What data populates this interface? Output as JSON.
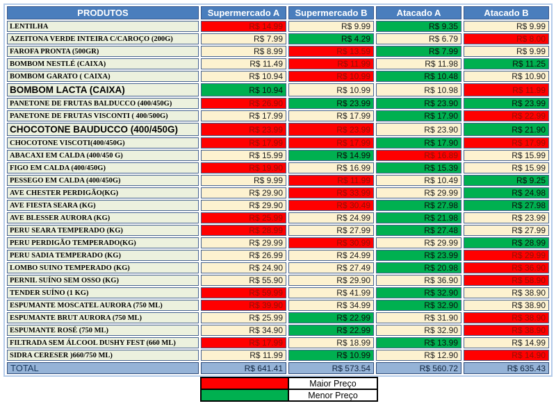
{
  "chart_data": {
    "type": "table",
    "title": "Comparação de preços de produtos entre mercados",
    "columns": [
      "PRODUTOS",
      "Supermercado A",
      "Supermercado B",
      "Atacado A",
      "Atacado B"
    ],
    "rows": [
      {
        "product": "LENTILHA",
        "emphasis": false,
        "prices": [
          {
            "value": "R$ 14.99",
            "state": "high"
          },
          {
            "value": "R$ 9.99",
            "state": "normal"
          },
          {
            "value": "R$ 9.35",
            "state": "low"
          },
          {
            "value": "R$ 9.99",
            "state": "normal"
          }
        ]
      },
      {
        "product": "AZEITONA VERDE INTEIRA C/CAROÇO (200G)",
        "emphasis": false,
        "prices": [
          {
            "value": "R$ 7.99",
            "state": "normal"
          },
          {
            "value": "R$ 4.29",
            "state": "low"
          },
          {
            "value": "R$ 6.79",
            "state": "normal"
          },
          {
            "value": "R$ 8.00",
            "state": "high"
          }
        ]
      },
      {
        "product": "FAROFA PRONTA (500GR)",
        "emphasis": false,
        "prices": [
          {
            "value": "R$ 8.99",
            "state": "normal"
          },
          {
            "value": "R$ 13.59",
            "state": "high"
          },
          {
            "value": "R$ 7.99",
            "state": "low"
          },
          {
            "value": "R$ 9.99",
            "state": "normal"
          }
        ]
      },
      {
        "product": "BOMBOM NESTLÉ (CAIXA)",
        "emphasis": false,
        "prices": [
          {
            "value": "R$ 11.49",
            "state": "normal"
          },
          {
            "value": "R$ 11.99",
            "state": "high"
          },
          {
            "value": "R$ 11.98",
            "state": "normal"
          },
          {
            "value": "R$ 11.25",
            "state": "low"
          }
        ]
      },
      {
        "product": "BOMBOM GARATO ( CAIXA)",
        "emphasis": false,
        "prices": [
          {
            "value": "R$ 10.94",
            "state": "normal"
          },
          {
            "value": "R$ 10.99",
            "state": "high"
          },
          {
            "value": "R$ 10.48",
            "state": "low"
          },
          {
            "value": "R$ 10.90",
            "state": "normal"
          }
        ]
      },
      {
        "product": "BOMBOM LACTA (CAIXA)",
        "emphasis": true,
        "prices": [
          {
            "value": "R$ 10.94",
            "state": "low"
          },
          {
            "value": "R$ 10.99",
            "state": "normal"
          },
          {
            "value": "R$ 10.98",
            "state": "normal"
          },
          {
            "value": "R$ 11.99",
            "state": "high"
          }
        ]
      },
      {
        "product": "PANETONE DE FRUTAS BALDUCCO (400/450G)",
        "emphasis": false,
        "prices": [
          {
            "value": "R$ 26.90",
            "state": "high"
          },
          {
            "value": "R$ 23.99",
            "state": "low"
          },
          {
            "value": "R$ 23.90",
            "state": "low"
          },
          {
            "value": "R$ 23.99",
            "state": "low"
          }
        ]
      },
      {
        "product": "PANETONE DE FRUTAS VISCONTI ( 400/500G)",
        "emphasis": false,
        "prices": [
          {
            "value": "R$ 17.99",
            "state": "normal"
          },
          {
            "value": "R$ 17.99",
            "state": "normal"
          },
          {
            "value": "R$ 17.90",
            "state": "low"
          },
          {
            "value": "R$ 22.99",
            "state": "high"
          }
        ]
      },
      {
        "product": "CHOCOTONE BAUDUCCO (400/450G)",
        "emphasis": true,
        "prices": [
          {
            "value": "R$ 23.99",
            "state": "high"
          },
          {
            "value": "R$ 23.99",
            "state": "high"
          },
          {
            "value": "R$ 23.90",
            "state": "normal"
          },
          {
            "value": "R$ 21.90",
            "state": "low"
          }
        ]
      },
      {
        "product": "CHOCOTONE VISCOTI(400/450G)",
        "emphasis": false,
        "prices": [
          {
            "value": "R$ 17.99",
            "state": "high"
          },
          {
            "value": "R$ 17.99",
            "state": "high"
          },
          {
            "value": "R$ 17.90",
            "state": "low"
          },
          {
            "value": "R$ 17.99",
            "state": "high"
          }
        ]
      },
      {
        "product": "ABACAXI EM CALDA (400/450 G)",
        "emphasis": false,
        "prices": [
          {
            "value": "R$ 15.99",
            "state": "normal"
          },
          {
            "value": "R$ 14.99",
            "state": "low"
          },
          {
            "value": "R$ 16.89",
            "state": "high"
          },
          {
            "value": "R$ 15.99",
            "state": "normal"
          }
        ]
      },
      {
        "product": "FIGO EM CALDA (400/450G)",
        "emphasis": false,
        "prices": [
          {
            "value": "R$ 19.90",
            "state": "high"
          },
          {
            "value": "R$ 16.99",
            "state": "normal"
          },
          {
            "value": "R$ 15.39",
            "state": "low"
          },
          {
            "value": "R$ 15.99",
            "state": "normal"
          }
        ]
      },
      {
        "product": "PESSEGO EM CALDA (400/450G)",
        "emphasis": false,
        "prices": [
          {
            "value": "R$ 9.99",
            "state": "normal"
          },
          {
            "value": "R$ 11.99",
            "state": "high"
          },
          {
            "value": "R$ 10.49",
            "state": "normal"
          },
          {
            "value": "R$ 9.25",
            "state": "low"
          }
        ]
      },
      {
        "product": "AVE CHESTER PERDIGÃO(KG)",
        "emphasis": false,
        "prices": [
          {
            "value": "R$ 29.90",
            "state": "normal"
          },
          {
            "value": "R$ 33.99",
            "state": "high"
          },
          {
            "value": "R$ 29.99",
            "state": "normal"
          },
          {
            "value": "R$ 24.98",
            "state": "low"
          }
        ]
      },
      {
        "product": "AVE FIESTA SEARA (KG)",
        "emphasis": false,
        "prices": [
          {
            "value": "R$ 29.90",
            "state": "normal"
          },
          {
            "value": "R$ 30.49",
            "state": "high"
          },
          {
            "value": "R$ 27.98",
            "state": "low"
          },
          {
            "value": "R$ 27.98",
            "state": "low"
          }
        ]
      },
      {
        "product": "AVE BLESSER AURORA (KG)",
        "emphasis": false,
        "prices": [
          {
            "value": "R$ 25.99",
            "state": "high"
          },
          {
            "value": "R$ 24.99",
            "state": "normal"
          },
          {
            "value": "R$ 21.98",
            "state": "low"
          },
          {
            "value": "R$ 23.99",
            "state": "normal"
          }
        ]
      },
      {
        "product": "PERU SEARA TEMPERADO (KG)",
        "emphasis": false,
        "prices": [
          {
            "value": "R$ 28.99",
            "state": "high"
          },
          {
            "value": "R$ 27.99",
            "state": "normal"
          },
          {
            "value": "R$ 27.48",
            "state": "low"
          },
          {
            "value": "R$ 27.99",
            "state": "normal"
          }
        ]
      },
      {
        "product": "PERU PERDIGÃO TEMPERADO(KG)",
        "emphasis": false,
        "prices": [
          {
            "value": "R$ 29.99",
            "state": "normal"
          },
          {
            "value": "R$ 30.99",
            "state": "high"
          },
          {
            "value": "R$ 29.99",
            "state": "normal"
          },
          {
            "value": "R$ 28.99",
            "state": "low"
          }
        ]
      },
      {
        "product": "PERU SADIA TEMPERADO (KG)",
        "emphasis": false,
        "prices": [
          {
            "value": "R$ 26.99",
            "state": "normal"
          },
          {
            "value": "R$ 24.99",
            "state": "normal"
          },
          {
            "value": "R$ 23.99",
            "state": "low"
          },
          {
            "value": "R$ 29.99",
            "state": "high"
          }
        ]
      },
      {
        "product": "LOMBO SUINO TEMPERADO (KG)",
        "emphasis": false,
        "prices": [
          {
            "value": "R$ 24.90",
            "state": "normal"
          },
          {
            "value": "R$ 27.49",
            "state": "normal"
          },
          {
            "value": "R$ 20.98",
            "state": "low"
          },
          {
            "value": "R$ 36.90",
            "state": "high"
          }
        ]
      },
      {
        "product": "PERNIL SUÍNO SEM OSSO (KG)",
        "emphasis": false,
        "prices": [
          {
            "value": "R$ 55.90",
            "state": "normal"
          },
          {
            "value": "R$ 29.90",
            "state": "normal"
          },
          {
            "value": "R$ 36.90",
            "state": "normal"
          },
          {
            "value": "R$ 58.90",
            "state": "high"
          }
        ]
      },
      {
        "product": "TENDER SUÍNO (1 KG)",
        "emphasis": false,
        "prices": [
          {
            "value": "R$ 59.99",
            "state": "high"
          },
          {
            "value": "R$ 41.99",
            "state": "normal"
          },
          {
            "value": "R$ 32.90",
            "state": "low"
          },
          {
            "value": "R$ 38.90",
            "state": "normal"
          }
        ]
      },
      {
        "product": "ESPUMANTE MOSCATEL AURORA (750 ML)",
        "emphasis": false,
        "prices": [
          {
            "value": "R$ 39.90",
            "state": "high"
          },
          {
            "value": "R$ 34.99",
            "state": "normal"
          },
          {
            "value": "R$ 32.90",
            "state": "low"
          },
          {
            "value": "R$ 38.90",
            "state": "normal"
          }
        ]
      },
      {
        "product": "ESPUMANTE BRUT AURORA (750 ML)",
        "emphasis": false,
        "prices": [
          {
            "value": "R$ 25.99",
            "state": "normal"
          },
          {
            "value": "R$ 22.99",
            "state": "low"
          },
          {
            "value": "R$ 31.90",
            "state": "normal"
          },
          {
            "value": "R$ 38.90",
            "state": "high"
          }
        ]
      },
      {
        "product": "ESPUMANTE ROSÉ (750 ML)",
        "emphasis": false,
        "prices": [
          {
            "value": "R$ 34.90",
            "state": "normal"
          },
          {
            "value": "R$ 22.99",
            "state": "low"
          },
          {
            "value": "R$ 32.90",
            "state": "normal"
          },
          {
            "value": "R$ 38.90",
            "state": "high"
          }
        ]
      },
      {
        "product": "FILTRADA SEM ÁLCOOL DUSHY FEST (660 ML)",
        "emphasis": false,
        "prices": [
          {
            "value": "R$ 17.99",
            "state": "high"
          },
          {
            "value": "R$ 18.99",
            "state": "normal"
          },
          {
            "value": "R$ 13.99",
            "state": "low"
          },
          {
            "value": "R$ 14.99",
            "state": "normal"
          }
        ]
      },
      {
        "product": "SIDRA CERESER )660/750 ML)",
        "emphasis": false,
        "prices": [
          {
            "value": "R$ 11.99",
            "state": "normal"
          },
          {
            "value": "R$ 10.99",
            "state": "low"
          },
          {
            "value": "R$ 12.90",
            "state": "normal"
          },
          {
            "value": "R$ 14.90",
            "state": "high"
          }
        ]
      }
    ],
    "total": {
      "label": "TOTAL",
      "values": [
        "R$ 641.41",
        "R$ 573.54",
        "R$ 560.72",
        "R$ 635.43"
      ]
    },
    "legend": [
      {
        "label": "Maior Preço",
        "color": "#ff0000"
      },
      {
        "label": "Menor Preço",
        "color": "#00b050"
      }
    ],
    "colors": {
      "header_bg": "#4a7ebd",
      "product_bg": "#ecf1de",
      "price_bg": "#fdf2d0",
      "high_bg": "#ff0000",
      "low_bg": "#00b050",
      "total_bg": "#95b3d7"
    },
    "layout": {
      "grid": true,
      "legend_position": "bottom-center"
    }
  }
}
